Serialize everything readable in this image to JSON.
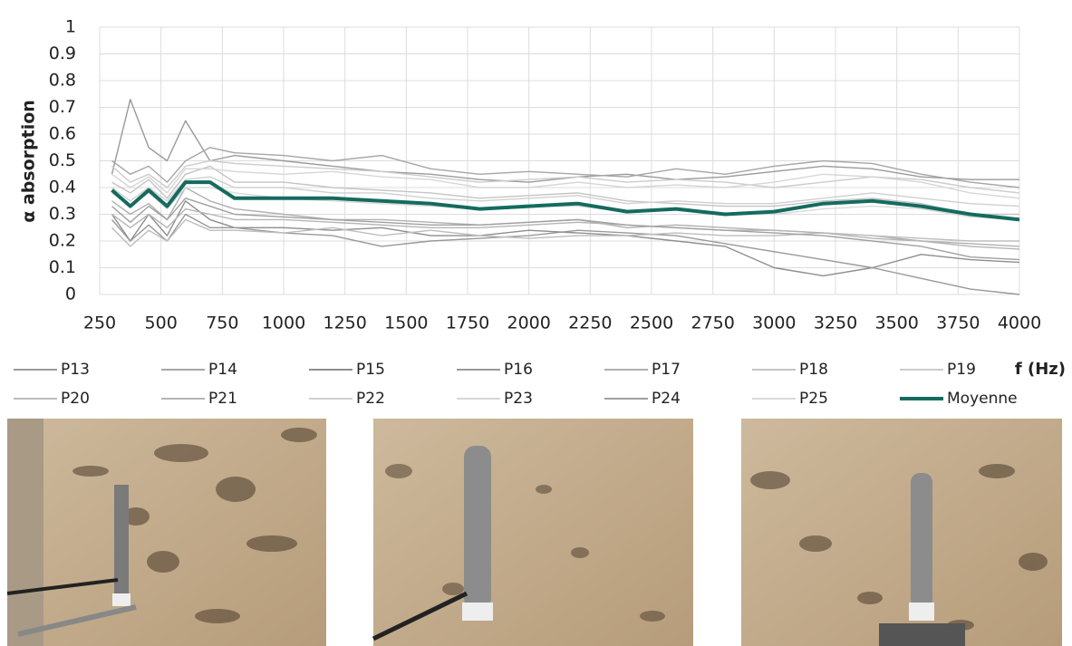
{
  "chart_data": {
    "type": "line",
    "y_label": "α absorption",
    "x_label": "f (Hz)",
    "x": [
      300,
      375,
      450,
      525,
      600,
      700,
      800,
      1000,
      1200,
      1400,
      1600,
      1800,
      2000,
      2200,
      2400,
      2600,
      2800,
      3000,
      3200,
      3400,
      3600,
      3800,
      4000
    ],
    "xlim": [
      250,
      4000
    ],
    "xticks": [
      250,
      500,
      750,
      1000,
      1250,
      1500,
      1750,
      2000,
      2250,
      2500,
      2750,
      3000,
      3250,
      3500,
      3750,
      4000
    ],
    "ylim": [
      0,
      1
    ],
    "yticks": [
      0,
      0.1,
      0.2,
      0.3,
      0.4,
      0.5,
      0.6,
      0.7,
      0.8,
      0.9,
      1
    ],
    "grid": true,
    "series": [
      {
        "name": "P13",
        "color": "#9a9a9a",
        "values": [
          0.45,
          0.73,
          0.55,
          0.5,
          0.65,
          0.5,
          0.52,
          0.5,
          0.48,
          0.46,
          0.45,
          0.43,
          0.42,
          0.44,
          0.45,
          0.43,
          0.44,
          0.46,
          0.48,
          0.47,
          0.44,
          0.43,
          0.43
        ]
      },
      {
        "name": "P14",
        "color": "#a6a6a6",
        "values": [
          0.5,
          0.45,
          0.48,
          0.42,
          0.5,
          0.55,
          0.53,
          0.52,
          0.5,
          0.52,
          0.47,
          0.45,
          0.46,
          0.45,
          0.44,
          0.47,
          0.45,
          0.48,
          0.5,
          0.49,
          0.45,
          0.42,
          0.4
        ]
      },
      {
        "name": "P15",
        "color": "#8e8e8e",
        "values": [
          0.3,
          0.2,
          0.3,
          0.22,
          0.35,
          0.28,
          0.25,
          0.25,
          0.24,
          0.25,
          0.22,
          0.22,
          0.24,
          0.23,
          0.22,
          0.2,
          0.18,
          0.1,
          0.07,
          0.1,
          0.15,
          0.13,
          0.12
        ]
      },
      {
        "name": "P16",
        "color": "#999999",
        "values": [
          0.28,
          0.2,
          0.26,
          0.2,
          0.3,
          0.25,
          0.25,
          0.23,
          0.22,
          0.18,
          0.2,
          0.21,
          0.22,
          0.24,
          0.23,
          0.22,
          0.19,
          0.16,
          0.13,
          0.1,
          0.06,
          0.02,
          0
        ]
      },
      {
        "name": "P17",
        "color": "#b0b0b0",
        "values": [
          0.35,
          0.3,
          0.34,
          0.28,
          0.4,
          0.35,
          0.32,
          0.3,
          0.28,
          0.28,
          0.27,
          0.26,
          0.27,
          0.28,
          0.25,
          0.26,
          0.25,
          0.24,
          0.23,
          0.22,
          0.2,
          0.19,
          0.18
        ]
      },
      {
        "name": "P18",
        "color": "#c4c4c4",
        "values": [
          0.42,
          0.38,
          0.43,
          0.36,
          0.45,
          0.48,
          0.42,
          0.42,
          0.4,
          0.39,
          0.38,
          0.36,
          0.37,
          0.38,
          0.35,
          0.34,
          0.33,
          0.33,
          0.35,
          0.36,
          0.34,
          0.3,
          0.3
        ]
      },
      {
        "name": "P19",
        "color": "#cccccc",
        "values": [
          0.48,
          0.42,
          0.45,
          0.4,
          0.48,
          0.5,
          0.49,
          0.48,
          0.47,
          0.46,
          0.44,
          0.42,
          0.43,
          0.44,
          0.42,
          0.43,
          0.42,
          0.4,
          0.42,
          0.44,
          0.43,
          0.4,
          0.38
        ]
      },
      {
        "name": "P20",
        "color": "#bdbdbd",
        "values": [
          0.25,
          0.18,
          0.24,
          0.2,
          0.28,
          0.24,
          0.24,
          0.23,
          0.25,
          0.22,
          0.24,
          0.22,
          0.21,
          0.22,
          0.22,
          0.23,
          0.22,
          0.22,
          0.23,
          0.22,
          0.21,
          0.2,
          0.2
        ]
      },
      {
        "name": "P21",
        "color": "#b5b5b5",
        "values": [
          0.3,
          0.25,
          0.3,
          0.25,
          0.32,
          0.3,
          0.28,
          0.28,
          0.27,
          0.26,
          0.25,
          0.25,
          0.26,
          0.27,
          0.26,
          0.25,
          0.24,
          0.24,
          0.23,
          0.21,
          0.2,
          0.18,
          0.17
        ]
      },
      {
        "name": "P22",
        "color": "#d0d0d0",
        "values": [
          0.4,
          0.35,
          0.4,
          0.35,
          0.43,
          0.44,
          0.4,
          0.4,
          0.38,
          0.38,
          0.36,
          0.35,
          0.36,
          0.37,
          0.34,
          0.35,
          0.34,
          0.34,
          0.36,
          0.38,
          0.36,
          0.34,
          0.33
        ]
      },
      {
        "name": "P23",
        "color": "#d6d6d6",
        "values": [
          0.45,
          0.4,
          0.44,
          0.38,
          0.47,
          0.47,
          0.46,
          0.45,
          0.46,
          0.44,
          0.43,
          0.4,
          0.4,
          0.42,
          0.4,
          0.41,
          0.4,
          0.42,
          0.45,
          0.44,
          0.42,
          0.38,
          0.36
        ]
      },
      {
        "name": "P24",
        "color": "#a0a0a0",
        "values": [
          0.33,
          0.27,
          0.33,
          0.28,
          0.36,
          0.33,
          0.3,
          0.29,
          0.28,
          0.27,
          0.26,
          0.26,
          0.27,
          0.28,
          0.26,
          0.25,
          0.24,
          0.23,
          0.22,
          0.2,
          0.18,
          0.14,
          0.13
        ]
      },
      {
        "name": "P25",
        "color": "#dadada",
        "values": [
          0.38,
          0.33,
          0.38,
          0.32,
          0.4,
          0.4,
          0.38,
          0.36,
          0.35,
          0.34,
          0.33,
          0.32,
          0.33,
          0.33,
          0.31,
          0.32,
          0.3,
          0.3,
          0.32,
          0.33,
          0.32,
          0.29,
          0.28
        ]
      },
      {
        "name": "Moyenne",
        "color": "#146b5e",
        "values": [
          0.39,
          0.33,
          0.39,
          0.33,
          0.42,
          0.42,
          0.36,
          0.36,
          0.36,
          0.35,
          0.34,
          0.32,
          0.33,
          0.34,
          0.31,
          0.32,
          0.3,
          0.31,
          0.34,
          0.35,
          0.33,
          0.3,
          0.28
        ]
      }
    ]
  }
}
